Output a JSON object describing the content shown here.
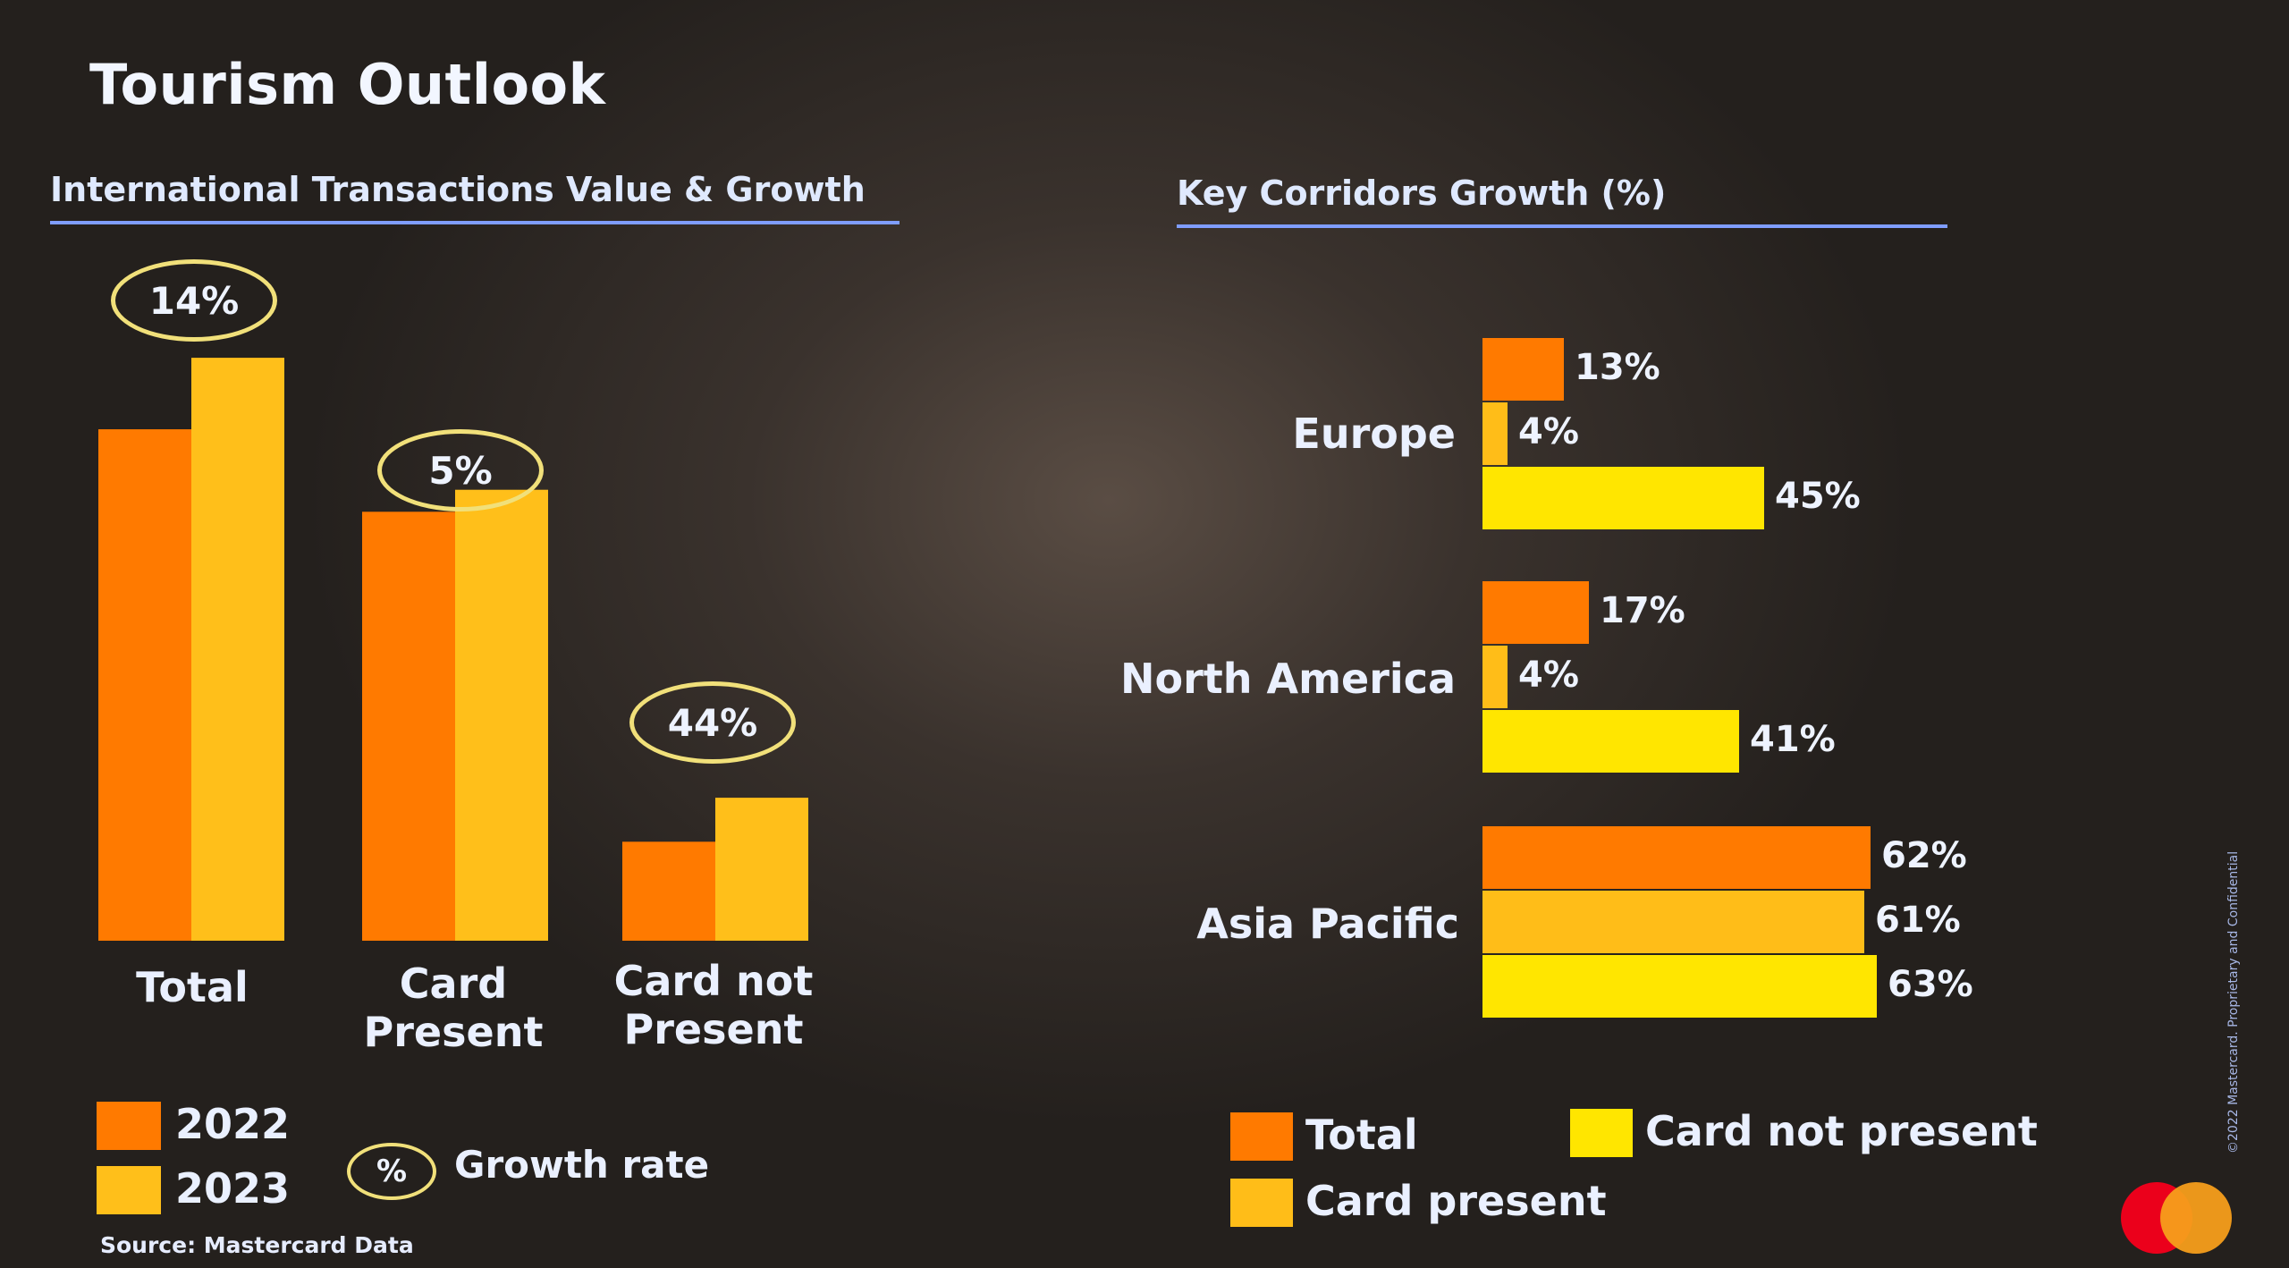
{
  "title": "Tourism Outlook",
  "colors": {
    "c2022": "#ff7a00",
    "c2023": "#ffbf1a",
    "total": "#ff7a00",
    "card_present": "#ffbd18",
    "card_not_present": "#ffe600"
  },
  "footer": {
    "source": "Source: Mastercard Data",
    "confidential": "©2022 Mastercard. Proprietary and Confidential",
    "logo": "mastercard-logo"
  },
  "chart_data": [
    {
      "type": "bar",
      "title": "International Transactions Value & Growth",
      "categories": [
        "Total",
        "Card Present",
        "Card not Present"
      ],
      "series": [
        {
          "name": "2022",
          "values": [
            93,
            78,
            18
          ]
        },
        {
          "name": "2023",
          "values": [
            106,
            82,
            26
          ]
        }
      ],
      "growth_rates": [
        "14%",
        "5%",
        "44%"
      ],
      "growth_legend": {
        "symbol": "%",
        "label": "Growth rate"
      },
      "ylim": [
        0,
        110
      ]
    },
    {
      "type": "bar",
      "orientation": "horizontal",
      "title": "Key Corridors Growth (%)",
      "categories": [
        "Europe",
        "North America",
        "Asia Pacific"
      ],
      "series": [
        {
          "name": "Total",
          "values": [
            13,
            17,
            62
          ]
        },
        {
          "name": "Card present",
          "values": [
            4,
            4,
            61
          ]
        },
        {
          "name": "Card not present",
          "values": [
            45,
            41,
            63
          ]
        }
      ],
      "xlim": [
        0,
        70
      ],
      "legend": [
        "Total",
        "Card present",
        "Card not present"
      ]
    }
  ]
}
